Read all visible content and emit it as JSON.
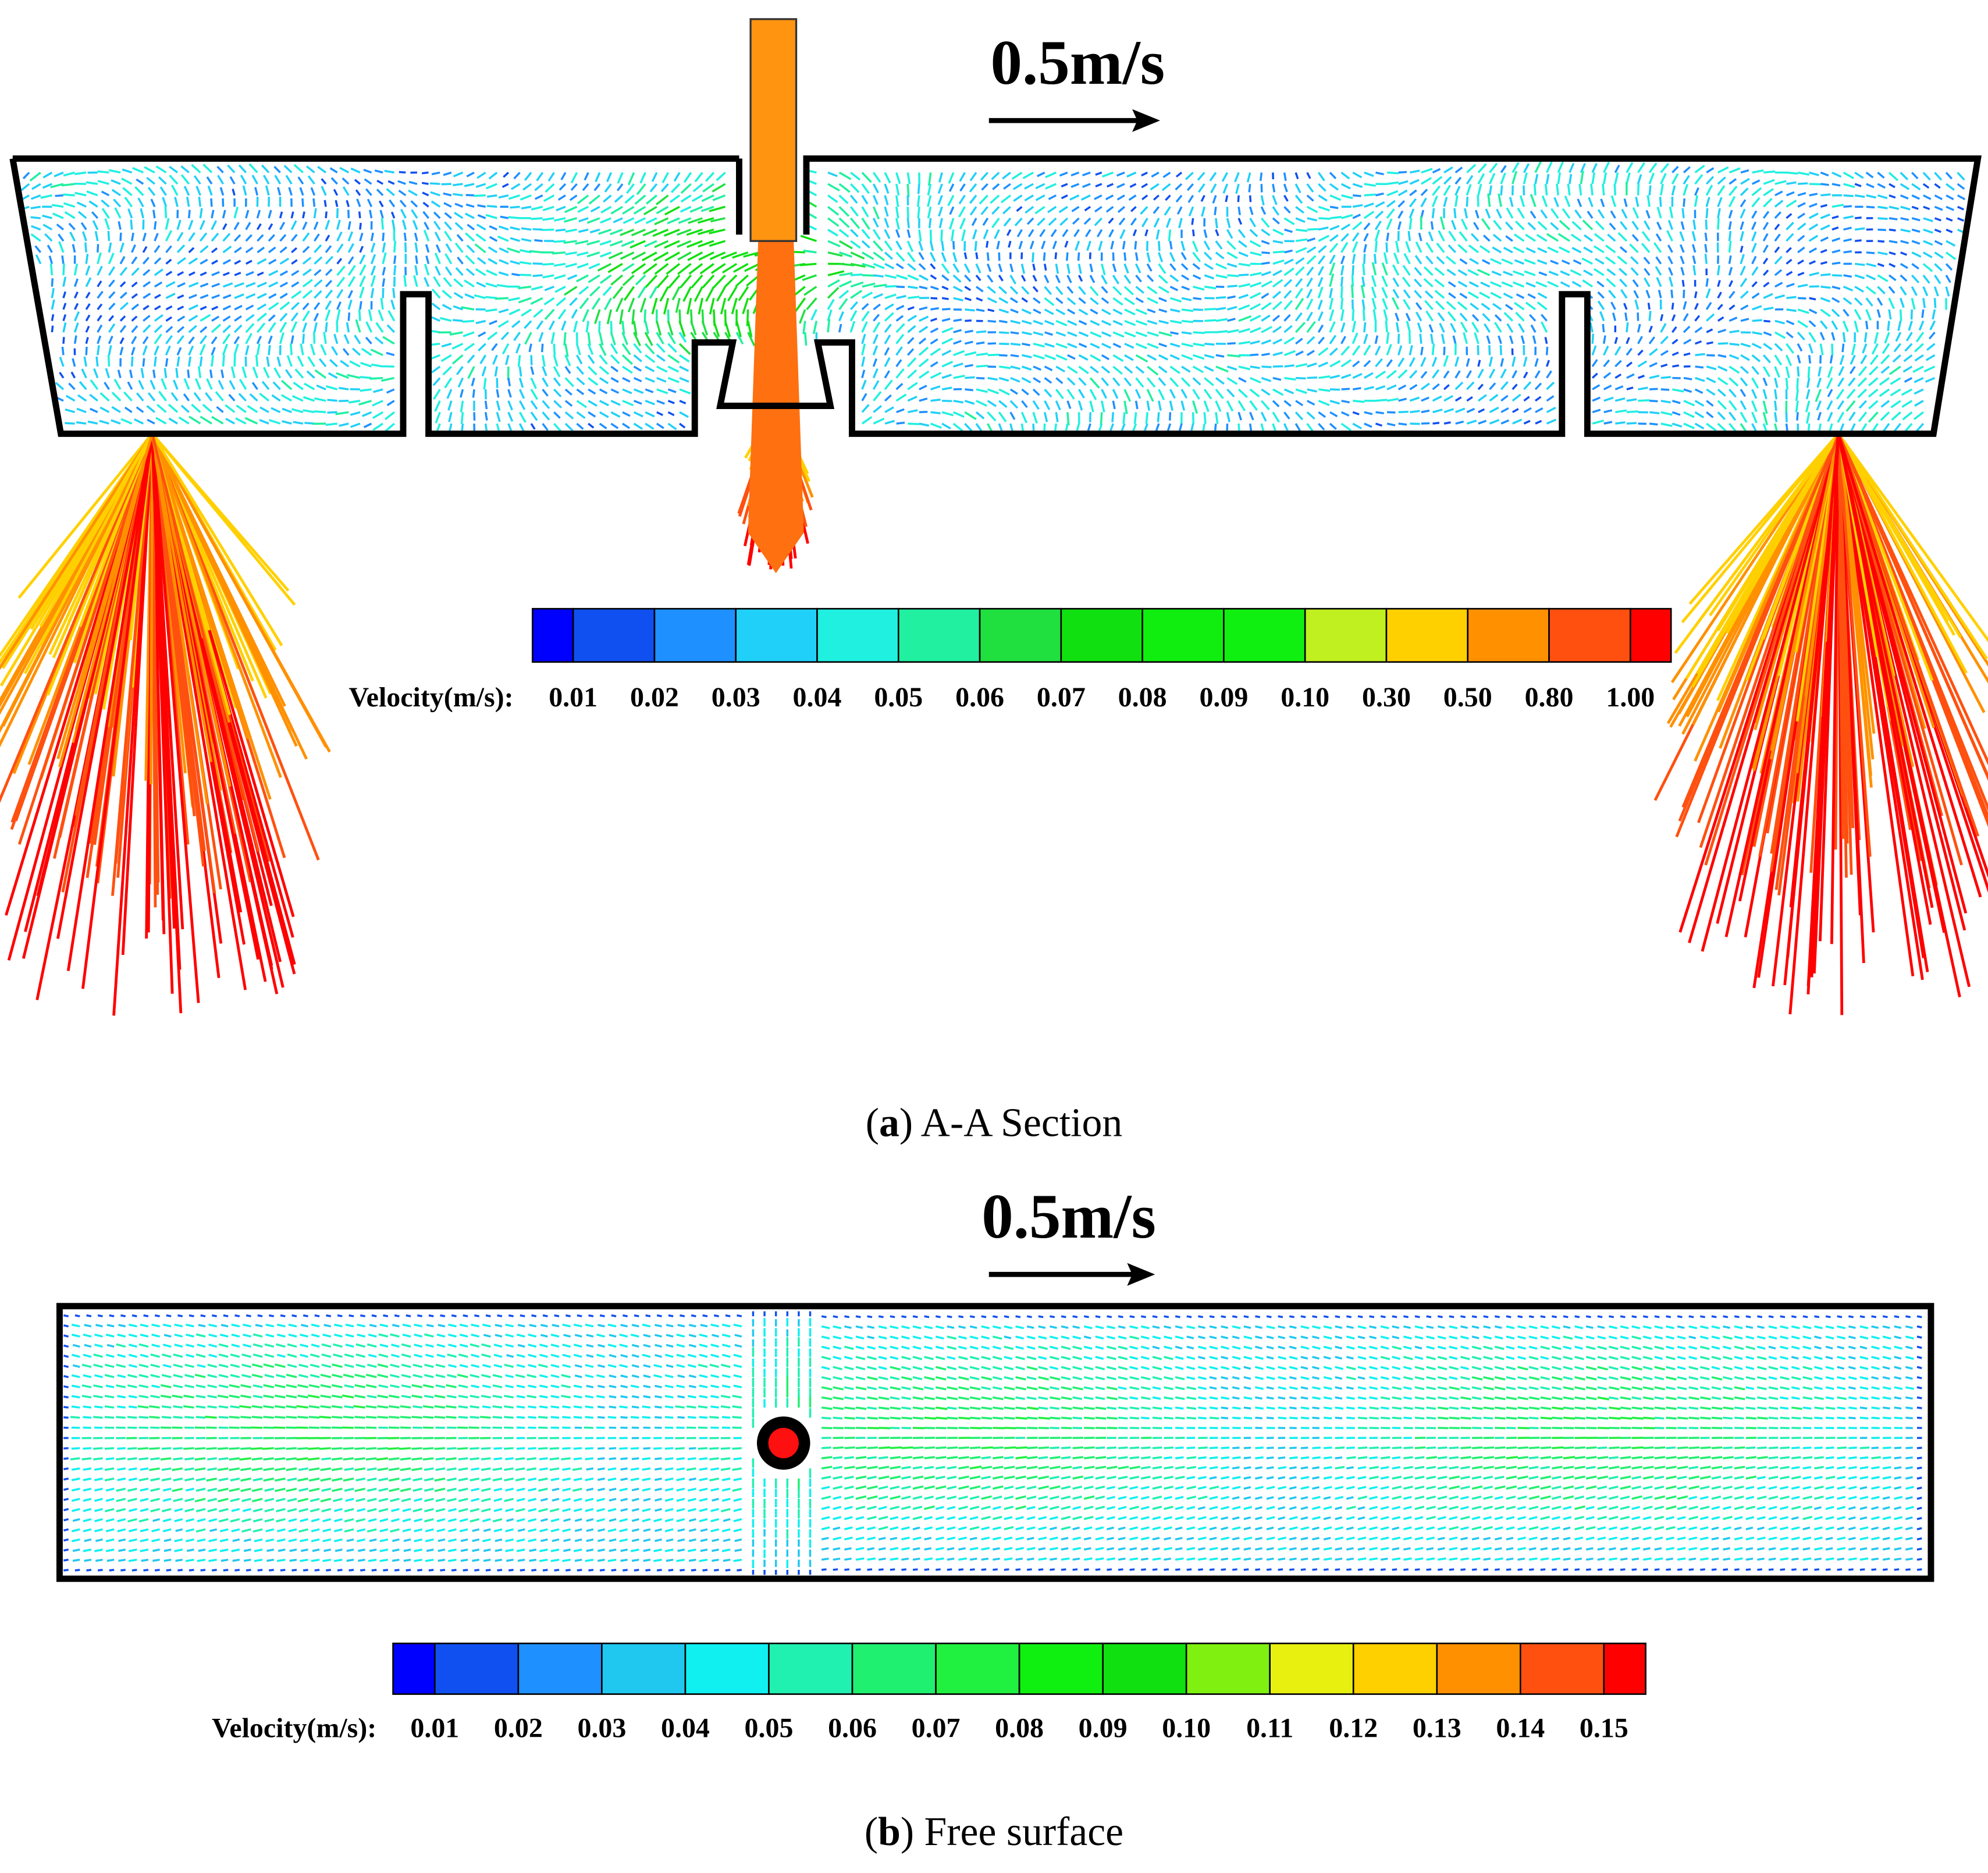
{
  "panels": [
    {
      "caption_open": "(",
      "letter": "a",
      "caption_rest": ") A-A Section",
      "scale_label": "0.5m/s",
      "colorbar": {
        "title": "Velocity(m/s):",
        "levels": [
          "0.01",
          "0.02",
          "0.03",
          "0.04",
          "0.05",
          "0.06",
          "0.07",
          "0.08",
          "0.09",
          "0.10",
          "0.30",
          "0.50",
          "0.80",
          "1.00"
        ],
        "colors": [
          "#0000ff",
          "#1050f0",
          "#1e90ff",
          "#20d0f8",
          "#20f0e0",
          "#20f0a0",
          "#20e040",
          "#10e010",
          "#10ee10",
          "#10f010",
          "#c0f020",
          "#ffd000",
          "#ff9000",
          "#ff5010",
          "#ff0000"
        ]
      }
    },
    {
      "caption_open": "(",
      "letter": "b",
      "caption_rest": ") Free surface",
      "scale_label": "0.5m/s",
      "colorbar": {
        "title": "Velocity(m/s):",
        "levels": [
          "0.01",
          "0.02",
          "0.03",
          "0.04",
          "0.05",
          "0.06",
          "0.07",
          "0.08",
          "0.09",
          "0.10",
          "0.11",
          "0.12",
          "0.13",
          "0.14",
          "0.15"
        ],
        "colors": [
          "#0000ff",
          "#1050f0",
          "#1e90ff",
          "#20c8f0",
          "#10f0f0",
          "#20f0b0",
          "#20f070",
          "#20f040",
          "#10f010",
          "#10e010",
          "#80f010",
          "#e8f010",
          "#ffd000",
          "#ff9000",
          "#ff5010",
          "#ff0000"
        ]
      }
    }
  ]
}
